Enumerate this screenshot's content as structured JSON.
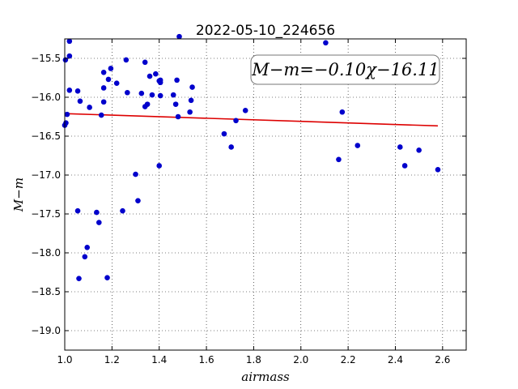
{
  "chart_data": {
    "type": "scatter",
    "title": "2022-05-10_224656",
    "xlabel": "airmass",
    "ylabel": "M−m",
    "xlim": [
      1.0,
      2.7
    ],
    "ylim": [
      -19.25,
      -15.25
    ],
    "y_inverted": true,
    "xticks": [
      "1.0",
      "1.2",
      "1.4",
      "1.6",
      "1.8",
      "2.0",
      "2.2",
      "2.4",
      "2.6"
    ],
    "yticks": [
      "−15.5",
      "−16.0",
      "−16.5",
      "−17.0",
      "−17.5",
      "−18.0",
      "−18.5",
      "−19.0"
    ],
    "grid": true,
    "point_color": "#0000cc",
    "fit_color": "#dd0000",
    "annotation": "M−m=−0.10χ−16.11",
    "annotation_placement": "top-right",
    "fit": {
      "slope": -0.1,
      "intercept": -16.11,
      "x_range": [
        1.0,
        2.58
      ]
    },
    "points": [
      {
        "x": 1.003,
        "y": -15.52
      },
      {
        "x": 1.02,
        "y": -15.28
      },
      {
        "x": 1.02,
        "y": -15.47
      },
      {
        "x": 1.02,
        "y": -15.91
      },
      {
        "x": 1.01,
        "y": -16.22
      },
      {
        "x": 1.005,
        "y": -16.33
      },
      {
        "x": 1.0,
        "y": -16.36
      },
      {
        "x": 1.055,
        "y": -15.92
      },
      {
        "x": 1.065,
        "y": -16.05
      },
      {
        "x": 1.105,
        "y": -16.13
      },
      {
        "x": 1.165,
        "y": -15.68
      },
      {
        "x": 1.165,
        "y": -15.88
      },
      {
        "x": 1.165,
        "y": -16.06
      },
      {
        "x": 1.155,
        "y": -16.23
      },
      {
        "x": 1.185,
        "y": -15.77
      },
      {
        "x": 1.195,
        "y": -15.63
      },
      {
        "x": 1.22,
        "y": -15.82
      },
      {
        "x": 1.26,
        "y": -15.52
      },
      {
        "x": 1.265,
        "y": -15.94
      },
      {
        "x": 1.325,
        "y": -15.95
      },
      {
        "x": 1.34,
        "y": -15.55
      },
      {
        "x": 1.34,
        "y": -16.12
      },
      {
        "x": 1.35,
        "y": -16.09
      },
      {
        "x": 1.36,
        "y": -15.73
      },
      {
        "x": 1.37,
        "y": -15.97
      },
      {
        "x": 1.385,
        "y": -15.7
      },
      {
        "x": 1.4,
        "y": -15.79
      },
      {
        "x": 1.405,
        "y": -15.81
      },
      {
        "x": 1.405,
        "y": -15.78
      },
      {
        "x": 1.405,
        "y": -15.98
      },
      {
        "x": 1.46,
        "y": -15.97
      },
      {
        "x": 1.47,
        "y": -16.09
      },
      {
        "x": 1.475,
        "y": -15.78
      },
      {
        "x": 1.48,
        "y": -16.25
      },
      {
        "x": 1.485,
        "y": -15.22
      },
      {
        "x": 1.53,
        "y": -16.19
      },
      {
        "x": 1.535,
        "y": -16.04
      },
      {
        "x": 1.54,
        "y": -15.87
      },
      {
        "x": 1.055,
        "y": -17.46
      },
      {
        "x": 1.06,
        "y": -18.33
      },
      {
        "x": 1.085,
        "y": -18.05
      },
      {
        "x": 1.095,
        "y": -17.93
      },
      {
        "x": 1.135,
        "y": -17.48
      },
      {
        "x": 1.145,
        "y": -17.61
      },
      {
        "x": 1.18,
        "y": -18.32
      },
      {
        "x": 1.245,
        "y": -17.46
      },
      {
        "x": 1.3,
        "y": -16.99
      },
      {
        "x": 1.31,
        "y": -17.33
      },
      {
        "x": 1.4,
        "y": -16.88
      },
      {
        "x": 1.675,
        "y": -16.47
      },
      {
        "x": 1.705,
        "y": -16.64
      },
      {
        "x": 1.725,
        "y": -16.3
      },
      {
        "x": 1.765,
        "y": -16.17
      },
      {
        "x": 2.105,
        "y": -15.3
      },
      {
        "x": 2.16,
        "y": -16.8
      },
      {
        "x": 2.175,
        "y": -16.19
      },
      {
        "x": 2.24,
        "y": -16.62
      },
      {
        "x": 2.42,
        "y": -16.64
      },
      {
        "x": 2.44,
        "y": -16.88
      },
      {
        "x": 2.5,
        "y": -16.68
      },
      {
        "x": 2.58,
        "y": -16.93
      }
    ]
  }
}
